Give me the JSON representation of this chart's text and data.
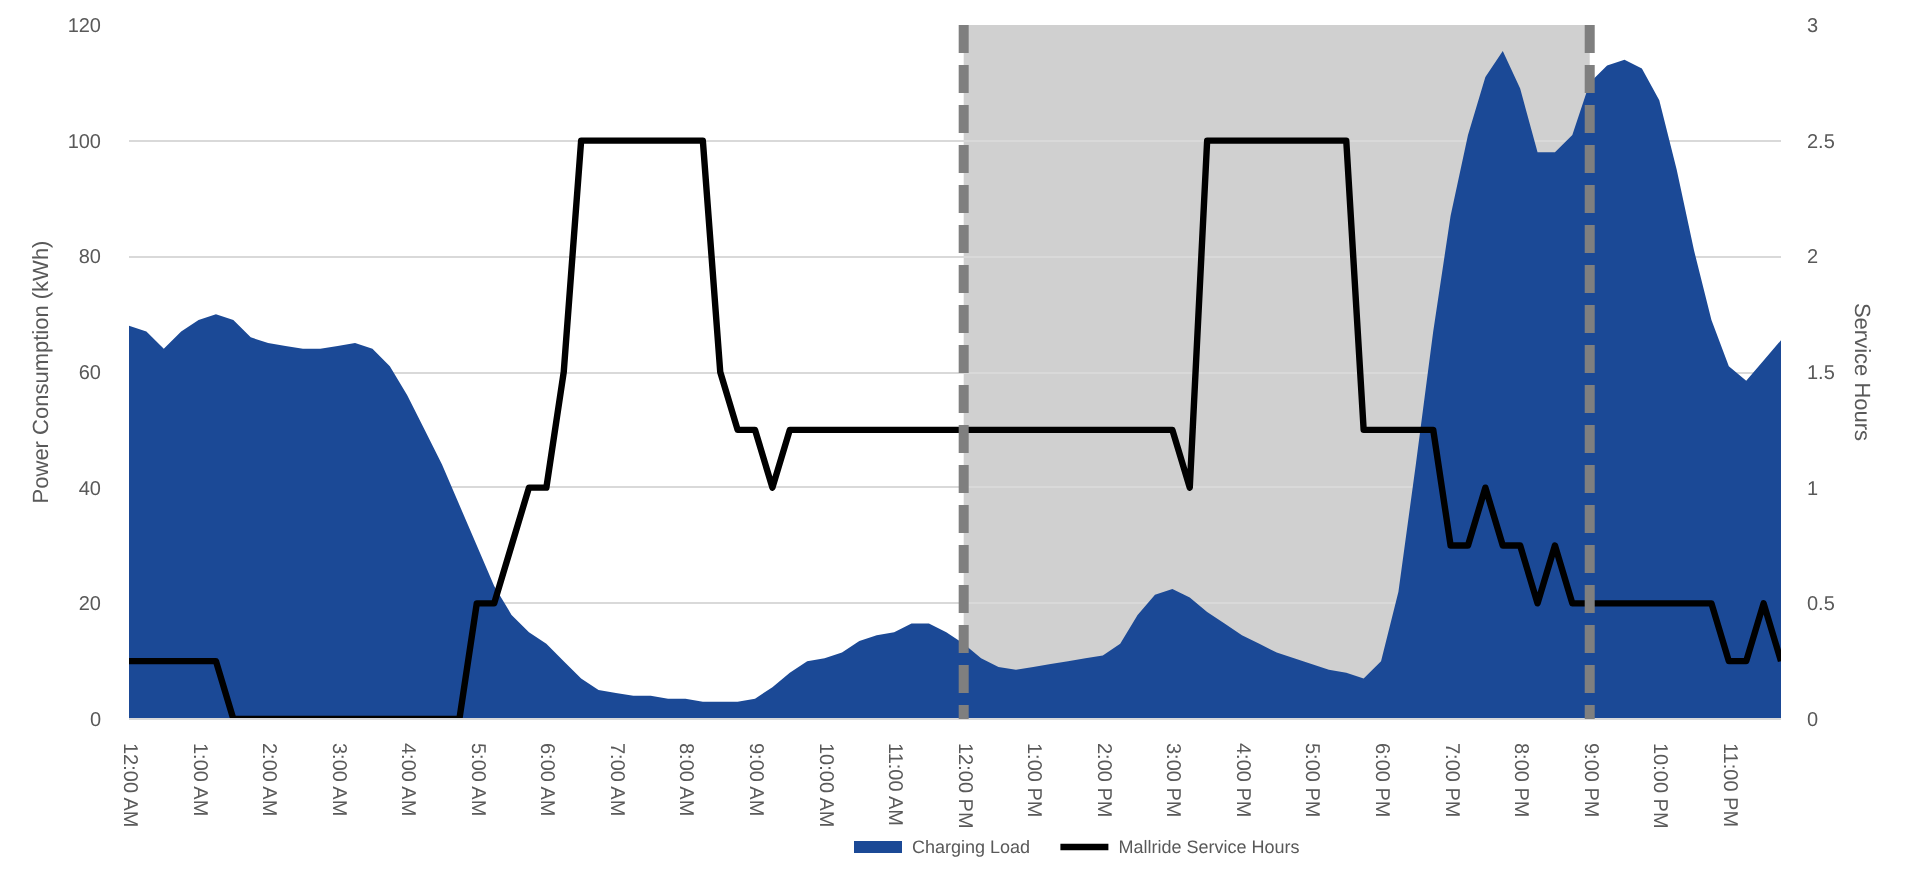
{
  "chart_data": {
    "type": "area",
    "x": [
      0,
      0.25,
      0.5,
      0.75,
      1,
      1.25,
      1.5,
      1.75,
      2,
      2.25,
      2.5,
      2.75,
      3,
      3.25,
      3.5,
      3.75,
      4,
      4.25,
      4.5,
      4.75,
      5,
      5.25,
      5.5,
      5.75,
      6,
      6.25,
      6.5,
      6.75,
      7,
      7.25,
      7.5,
      7.75,
      8,
      8.25,
      8.5,
      8.75,
      9,
      9.25,
      9.5,
      9.75,
      10,
      10.25,
      10.5,
      10.75,
      11,
      11.25,
      11.5,
      11.75,
      12,
      12.25,
      12.5,
      12.75,
      13,
      13.25,
      13.5,
      13.75,
      14,
      14.25,
      14.5,
      14.75,
      15,
      15.25,
      15.5,
      15.75,
      16,
      16.25,
      16.5,
      16.75,
      17,
      17.25,
      17.5,
      17.75,
      18,
      18.25,
      18.5,
      18.75,
      19,
      19.25,
      19.5,
      19.75,
      20,
      20.25,
      20.5,
      20.75,
      21,
      21.25,
      21.5,
      21.75,
      22,
      22.25,
      22.5,
      22.75,
      23,
      23.25,
      23.5,
      23.75
    ],
    "series": [
      {
        "name": "Charging Load",
        "color": "#1b4996",
        "values": [
          68,
          67,
          64,
          67,
          69,
          70,
          69,
          66,
          65,
          64.5,
          64,
          64,
          64.5,
          65,
          64,
          61,
          56,
          50,
          44,
          37,
          30,
          23,
          18,
          15,
          13,
          10,
          7,
          5,
          4.5,
          4,
          4,
          3.5,
          3.5,
          3,
          3,
          3,
          3.5,
          5.5,
          8,
          10,
          10.5,
          11.5,
          13.5,
          14.5,
          15,
          16.5,
          16.5,
          15,
          13,
          10.5,
          9,
          8.5,
          9,
          9.5,
          10,
          10.5,
          11,
          13,
          18,
          21.5,
          22.5,
          21,
          18.5,
          16.5,
          14.5,
          13,
          11.5,
          10.5,
          9.5,
          8.5,
          8,
          7,
          10,
          22,
          44,
          67,
          87,
          101,
          111,
          115.5,
          109,
          98,
          98,
          101,
          110,
          113,
          114,
          112.5,
          107,
          95,
          81,
          69,
          61,
          58.5,
          62,
          65.5
        ]
      },
      {
        "name": "Mallride Service Hours",
        "type": "line",
        "color": "#000000",
        "axis": "y2",
        "values": [
          0.25,
          0.25,
          0.25,
          0.25,
          0.25,
          0.25,
          0,
          0,
          0,
          0,
          0,
          0,
          0,
          0,
          0,
          0,
          0,
          0,
          0,
          0,
          0.5,
          0.5,
          0.75,
          1,
          1,
          1.5,
          2.5,
          2.5,
          2.5,
          2.5,
          2.5,
          2.5,
          2.5,
          2.5,
          1.5,
          1.25,
          1.25,
          1,
          1.25,
          1.25,
          1.25,
          1.25,
          1.25,
          1.25,
          1.25,
          1.25,
          1.25,
          1.25,
          1.25,
          1.25,
          1.25,
          1.25,
          1.25,
          1.25,
          1.25,
          1.25,
          1.25,
          1.25,
          1.25,
          1.25,
          1.25,
          1,
          2.5,
          2.5,
          2.5,
          2.5,
          2.5,
          2.5,
          2.5,
          2.5,
          2.5,
          1.25,
          1.25,
          1.25,
          1.25,
          1.25,
          0.75,
          0.75,
          1,
          0.75,
          0.75,
          0.5,
          0.75,
          0.5,
          0.5,
          0.5,
          0.5,
          0.5,
          0.5,
          0.5,
          0.5,
          0.5,
          0.25,
          0.25,
          0.5,
          0.25
        ]
      }
    ],
    "xlim": [
      0,
      23.75
    ],
    "xticks": [
      {
        "value": 0,
        "label": "12:00 AM"
      },
      {
        "value": 1,
        "label": "1:00 AM"
      },
      {
        "value": 2,
        "label": "2:00 AM"
      },
      {
        "value": 3,
        "label": "3:00 AM"
      },
      {
        "value": 4,
        "label": "4:00 AM"
      },
      {
        "value": 5,
        "label": "5:00 AM"
      },
      {
        "value": 6,
        "label": "6:00 AM"
      },
      {
        "value": 7,
        "label": "7:00 AM"
      },
      {
        "value": 8,
        "label": "8:00 AM"
      },
      {
        "value": 9,
        "label": "9:00 AM"
      },
      {
        "value": 10,
        "label": "10:00 AM"
      },
      {
        "value": 11,
        "label": "11:00 AM"
      },
      {
        "value": 12,
        "label": "12:00 PM"
      },
      {
        "value": 13,
        "label": "1:00 PM"
      },
      {
        "value": 14,
        "label": "2:00 PM"
      },
      {
        "value": 15,
        "label": "3:00 PM"
      },
      {
        "value": 16,
        "label": "4:00 PM"
      },
      {
        "value": 17,
        "label": "5:00 PM"
      },
      {
        "value": 18,
        "label": "6:00 PM"
      },
      {
        "value": 19,
        "label": "7:00 PM"
      },
      {
        "value": 20,
        "label": "8:00 PM"
      },
      {
        "value": 21,
        "label": "9:00 PM"
      },
      {
        "value": 22,
        "label": "10:00 PM"
      },
      {
        "value": 23,
        "label": "11:00 PM"
      }
    ],
    "ylim": [
      0,
      120
    ],
    "yticks": [
      0,
      20,
      40,
      60,
      80,
      100,
      120
    ],
    "y2lim": [
      0,
      3
    ],
    "y2ticks": [
      0,
      0.5,
      1,
      1.5,
      2,
      2.5,
      3
    ],
    "ylabel": "Power Consumption (kWh)",
    "y2label": "Service Hours",
    "bands": [
      {
        "axis": "x",
        "from": 12,
        "to": 21,
        "color": "#d0d0d0"
      }
    ],
    "ref_lines": [
      {
        "axis": "x",
        "value": 12,
        "color": "#7f7f7f",
        "line_style": "dashed"
      },
      {
        "axis": "x",
        "value": 21,
        "color": "#7f7f7f",
        "line_style": "dashed"
      }
    ],
    "grid": "y",
    "legend": "bottom"
  }
}
